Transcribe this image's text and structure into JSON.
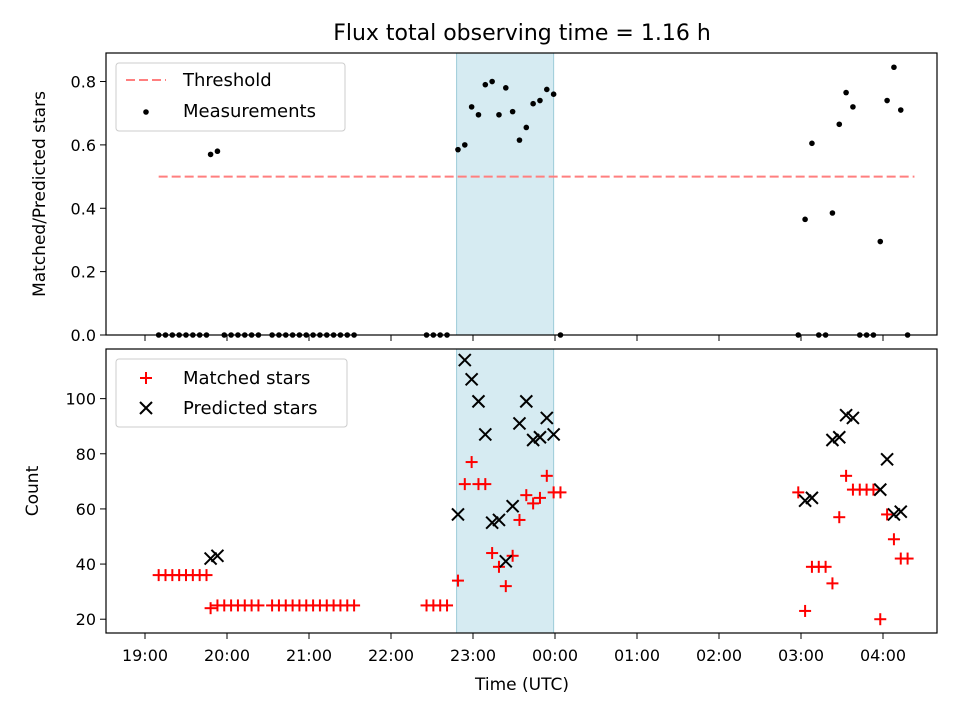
{
  "chart_data": {
    "title": "Flux total observing time = 1.16 h",
    "xlabel": "Time (UTC)",
    "x_ticks": [
      "19:00",
      "20:00",
      "21:00",
      "22:00",
      "23:00",
      "00:00",
      "01:00",
      "02:00",
      "03:00",
      "04:00"
    ],
    "shaded_region": {
      "start": "22:48",
      "end": "23:59"
    },
    "panels": [
      {
        "type": "scatter",
        "ylabel": "Matched/Predicted stars",
        "ylim": [
          0,
          0.89
        ],
        "y_ticks": [
          "0.0",
          "0.2",
          "0.4",
          "0.6",
          "0.8"
        ],
        "legend": {
          "position": "top-left",
          "entries": [
            "Threshold",
            "Measurements"
          ]
        },
        "threshold": {
          "name": "Threshold",
          "value": 0.5,
          "x_start": "19:10",
          "x_end": "04:23",
          "color": "#ff7f7f"
        },
        "series": [
          {
            "name": "Measurements",
            "color": "#000000",
            "points": [
              [
                "19:10",
                0
              ],
              [
                "19:15",
                0
              ],
              [
                "19:20",
                0
              ],
              [
                "19:25",
                0
              ],
              [
                "19:30",
                0
              ],
              [
                "19:35",
                0
              ],
              [
                "19:40",
                0
              ],
              [
                "19:45",
                0
              ],
              [
                "19:48",
                0.57
              ],
              [
                "19:53",
                0.58
              ],
              [
                "19:58",
                0
              ],
              [
                "20:03",
                0
              ],
              [
                "20:08",
                0
              ],
              [
                "20:13",
                0
              ],
              [
                "20:18",
                0
              ],
              [
                "20:23",
                0
              ],
              [
                "20:33",
                0
              ],
              [
                "20:38",
                0
              ],
              [
                "20:43",
                0
              ],
              [
                "20:48",
                0
              ],
              [
                "20:53",
                0
              ],
              [
                "20:58",
                0
              ],
              [
                "21:03",
                0
              ],
              [
                "21:08",
                0
              ],
              [
                "21:13",
                0
              ],
              [
                "21:18",
                0
              ],
              [
                "21:23",
                0
              ],
              [
                "21:28",
                0
              ],
              [
                "21:33",
                0
              ],
              [
                "22:26",
                0
              ],
              [
                "22:31",
                0
              ],
              [
                "22:36",
                0
              ],
              [
                "22:41",
                0
              ],
              [
                "22:49",
                0.585
              ],
              [
                "22:54",
                0.6
              ],
              [
                "22:59",
                0.72
              ],
              [
                "23:04",
                0.695
              ],
              [
                "23:09",
                0.79
              ],
              [
                "23:14",
                0.8
              ],
              [
                "23:19",
                0.695
              ],
              [
                "23:24",
                0.78
              ],
              [
                "23:29",
                0.705
              ],
              [
                "23:34",
                0.615
              ],
              [
                "23:39",
                0.655
              ],
              [
                "23:44",
                0.73
              ],
              [
                "23:49",
                0.74
              ],
              [
                "23:54",
                0.775
              ],
              [
                "23:59",
                0.76
              ],
              [
                "00:04",
                0
              ],
              [
                "02:58",
                0
              ],
              [
                "03:03",
                0.365
              ],
              [
                "03:08",
                0.605
              ],
              [
                "03:13",
                0
              ],
              [
                "03:18",
                0
              ],
              [
                "03:23",
                0.385
              ],
              [
                "03:28",
                0.665
              ],
              [
                "03:33",
                0.765
              ],
              [
                "03:38",
                0.72
              ],
              [
                "03:43",
                0
              ],
              [
                "03:48",
                0
              ],
              [
                "03:53",
                0
              ],
              [
                "03:58",
                0.295
              ],
              [
                "04:03",
                0.74
              ],
              [
                "04:08",
                0.845
              ],
              [
                "04:13",
                0.71
              ],
              [
                "04:18",
                0
              ]
            ]
          }
        ]
      },
      {
        "type": "scatter",
        "ylabel": "Count",
        "ylim": [
          15,
          118
        ],
        "y_ticks": [
          "20",
          "40",
          "60",
          "80",
          "100"
        ],
        "legend": {
          "position": "top-left",
          "entries": [
            "Matched stars",
            "Predicted stars"
          ]
        },
        "series": [
          {
            "name": "Matched stars",
            "color": "#ff0000",
            "marker": "+",
            "points": [
              [
                "19:10",
                36
              ],
              [
                "19:15",
                36
              ],
              [
                "19:20",
                36
              ],
              [
                "19:25",
                36
              ],
              [
                "19:30",
                36
              ],
              [
                "19:35",
                36
              ],
              [
                "19:40",
                36
              ],
              [
                "19:45",
                36
              ],
              [
                "19:48",
                24
              ],
              [
                "19:53",
                25
              ],
              [
                "19:58",
                25
              ],
              [
                "20:03",
                25
              ],
              [
                "20:08",
                25
              ],
              [
                "20:13",
                25
              ],
              [
                "20:18",
                25
              ],
              [
                "20:23",
                25
              ],
              [
                "20:33",
                25
              ],
              [
                "20:38",
                25
              ],
              [
                "20:43",
                25
              ],
              [
                "20:48",
                25
              ],
              [
                "20:53",
                25
              ],
              [
                "20:58",
                25
              ],
              [
                "21:03",
                25
              ],
              [
                "21:08",
                25
              ],
              [
                "21:13",
                25
              ],
              [
                "21:18",
                25
              ],
              [
                "21:23",
                25
              ],
              [
                "21:28",
                25
              ],
              [
                "21:33",
                25
              ],
              [
                "22:26",
                25
              ],
              [
                "22:31",
                25
              ],
              [
                "22:36",
                25
              ],
              [
                "22:41",
                25
              ],
              [
                "22:49",
                34
              ],
              [
                "22:54",
                69
              ],
              [
                "22:59",
                77
              ],
              [
                "23:04",
                69
              ],
              [
                "23:09",
                69
              ],
              [
                "23:14",
                44
              ],
              [
                "23:19",
                39
              ],
              [
                "23:24",
                32
              ],
              [
                "23:29",
                43
              ],
              [
                "23:34",
                56
              ],
              [
                "23:39",
                65
              ],
              [
                "23:44",
                62
              ],
              [
                "23:49",
                64
              ],
              [
                "23:54",
                72
              ],
              [
                "23:59",
                66
              ],
              [
                "00:04",
                66
              ],
              [
                "02:58",
                66
              ],
              [
                "03:03",
                23
              ],
              [
                "03:08",
                39
              ],
              [
                "03:13",
                39
              ],
              [
                "03:18",
                39
              ],
              [
                "03:23",
                33
              ],
              [
                "03:28",
                57
              ],
              [
                "03:33",
                72
              ],
              [
                "03:38",
                67
              ],
              [
                "03:43",
                67
              ],
              [
                "03:48",
                67
              ],
              [
                "03:53",
                67
              ],
              [
                "03:58",
                20
              ],
              [
                "04:03",
                58
              ],
              [
                "04:08",
                49
              ],
              [
                "04:13",
                42
              ],
              [
                "04:18",
                42
              ]
            ]
          },
          {
            "name": "Predicted stars",
            "color": "#000000",
            "marker": "x",
            "points": [
              [
                "19:48",
                42
              ],
              [
                "19:53",
                43
              ],
              [
                "22:49",
                58
              ],
              [
                "22:54",
                114
              ],
              [
                "22:59",
                107
              ],
              [
                "23:04",
                99
              ],
              [
                "23:09",
                87
              ],
              [
                "23:14",
                55
              ],
              [
                "23:19",
                56
              ],
              [
                "23:24",
                41
              ],
              [
                "23:29",
                61
              ],
              [
                "23:34",
                91
              ],
              [
                "23:39",
                99
              ],
              [
                "23:44",
                85
              ],
              [
                "23:49",
                86
              ],
              [
                "23:54",
                93
              ],
              [
                "23:59",
                87
              ],
              [
                "03:03",
                63
              ],
              [
                "03:08",
                64
              ],
              [
                "03:23",
                85
              ],
              [
                "03:28",
                86
              ],
              [
                "03:33",
                94
              ],
              [
                "03:38",
                93
              ],
              [
                "03:58",
                67
              ],
              [
                "04:03",
                78
              ],
              [
                "04:08",
                58
              ],
              [
                "04:13",
                59
              ]
            ]
          }
        ]
      }
    ]
  }
}
